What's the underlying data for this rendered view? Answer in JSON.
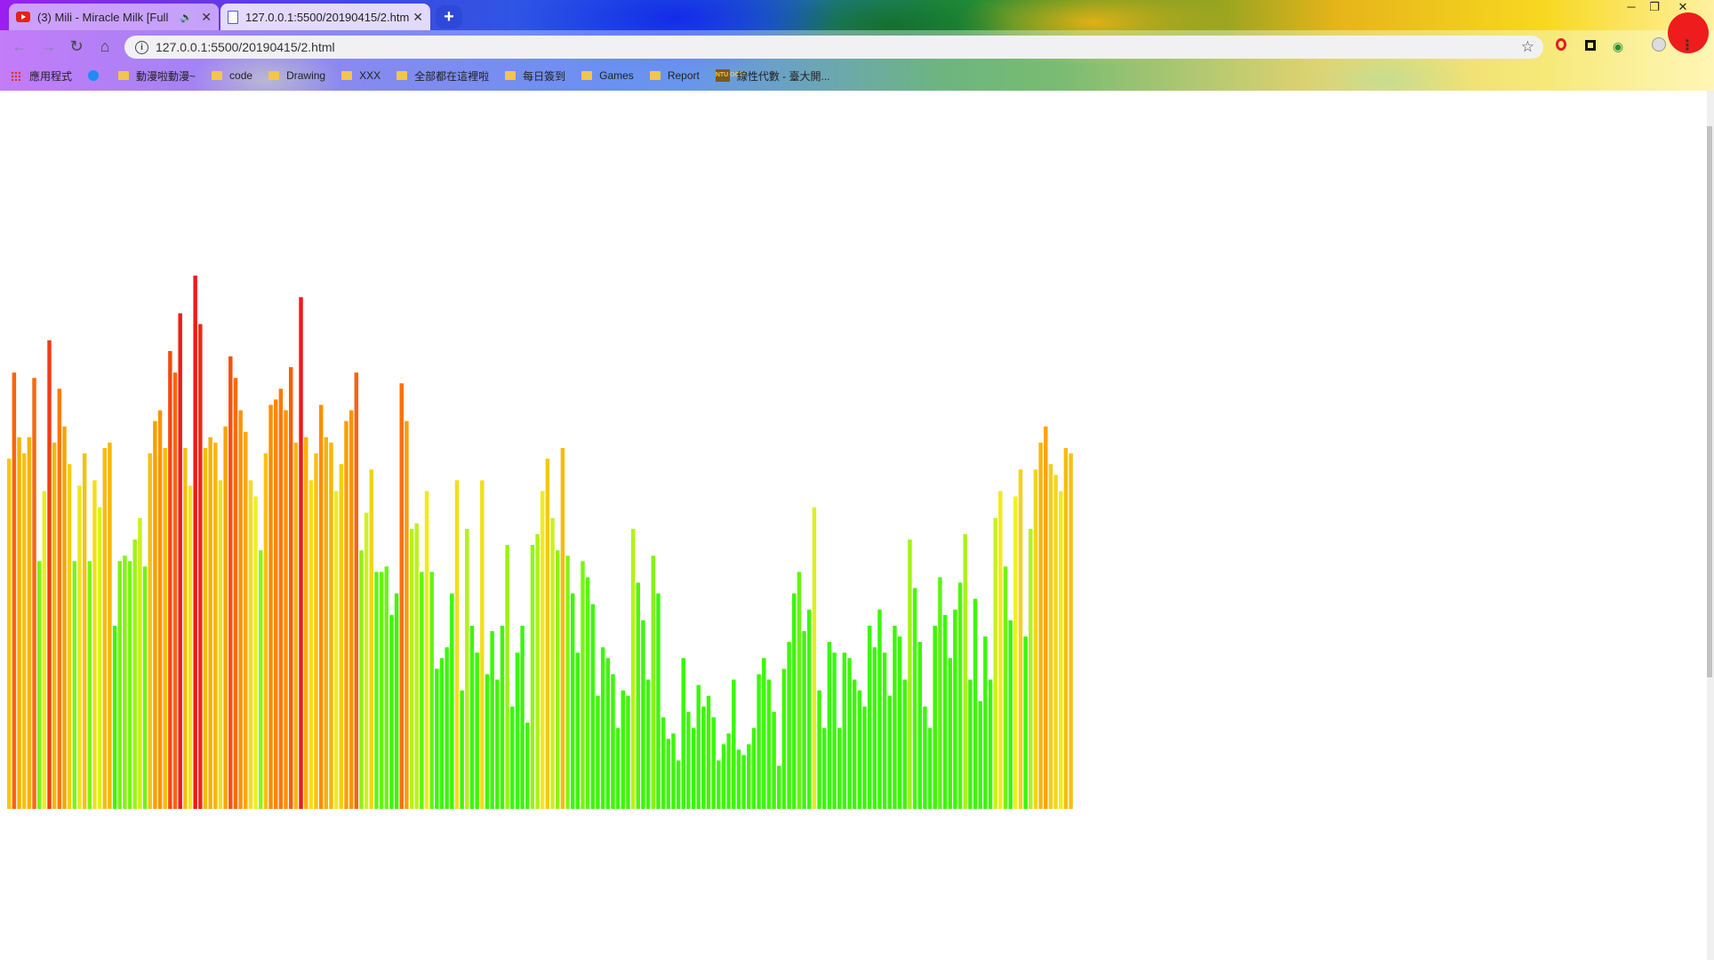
{
  "browser": {
    "tabs": [
      {
        "title": "(3) Mili - Miracle Milk [Full",
        "active": false,
        "playing_audio": true
      },
      {
        "title": "127.0.0.1:5500/20190415/2.htm",
        "active": true
      }
    ],
    "new_tab_label": "+",
    "window_controls": {
      "minimize": "─",
      "maximize": "❐",
      "close": "✕"
    },
    "url": "127.0.0.1:5500/20190415/2.html",
    "bookmarks": [
      "應用程式",
      "動漫啦動漫~",
      "code",
      "Drawing",
      "XXX",
      "全部都在這裡啦",
      "每日簽到",
      "Games",
      "Report",
      "線性代數 - 臺大開..."
    ],
    "ntu_badge": "NTU OCW"
  },
  "colors": {
    "low": "#3cf70a",
    "mid": "#f0f020",
    "high": "#ff8c00",
    "peak": "#f01a1a"
  },
  "chart_data": {
    "type": "bar",
    "title": "",
    "xlabel": "",
    "ylabel": "",
    "ylim": [
      0,
      100
    ],
    "color_scale": "green (low) → yellow → orange → red (high)",
    "bar_count": 212,
    "values": [
      65,
      81,
      69,
      66,
      69,
      80,
      46,
      59,
      87,
      68,
      78,
      71,
      64,
      46,
      60,
      66,
      46,
      61,
      56,
      67,
      68,
      34,
      46,
      47,
      46,
      50,
      54,
      45,
      66,
      72,
      74,
      67,
      85,
      81,
      92,
      67,
      60,
      99,
      90,
      67,
      69,
      68,
      61,
      71,
      84,
      80,
      74,
      70,
      61,
      58,
      48,
      66,
      75,
      76,
      78,
      74,
      82,
      68,
      95,
      69,
      61,
      66,
      75,
      69,
      68,
      59,
      64,
      72,
      74,
      81,
      48,
      55,
      63,
      44,
      44,
      45,
      36,
      40,
      79,
      72,
      52,
      53,
      44,
      59,
      44,
      26,
      28,
      30,
      40,
      61,
      22,
      52,
      34,
      29,
      61,
      25,
      33,
      24,
      34,
      49,
      19,
      29,
      34,
      16,
      49,
      51,
      59,
      65,
      54,
      48,
      67,
      47,
      40,
      29,
      46,
      43,
      38,
      21,
      30,
      28,
      25,
      15,
      22,
      21,
      52,
      42,
      35,
      24,
      47,
      40,
      17,
      13,
      14,
      9,
      28,
      18,
      15,
      23,
      19,
      21,
      17,
      9,
      12,
      14,
      24,
      11,
      10,
      12,
      15,
      25,
      28,
      24,
      18,
      8,
      26,
      31,
      40,
      44,
      33,
      37,
      56,
      22,
      15,
      31,
      29,
      15,
      29,
      28,
      24,
      22,
      19,
      34,
      30,
      37,
      29,
      21,
      34,
      32,
      24,
      50,
      41,
      31,
      19,
      15,
      34,
      43,
      36,
      28,
      37,
      42,
      51,
      24,
      39,
      20,
      32,
      24,
      54,
      59,
      45,
      35,
      58,
      63,
      32,
      52,
      63,
      68,
      71,
      64,
      62,
      59,
      67,
      66
    ]
  }
}
